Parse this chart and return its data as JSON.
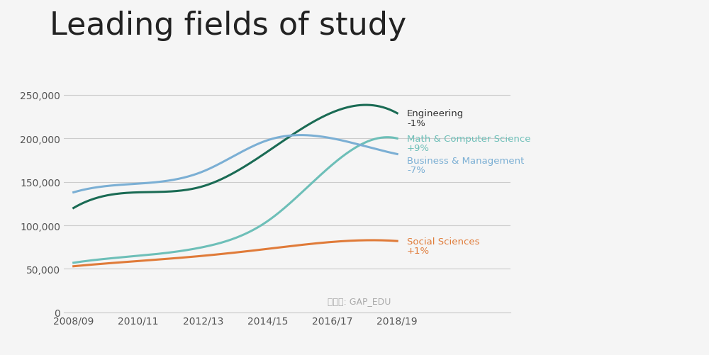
{
  "title": "Leading fields of study",
  "title_fontsize": 32,
  "background_color": "#f5f5f5",
  "x_labels": [
    "2008/09",
    "2010/11",
    "2012/13",
    "2014/15",
    "2016/17",
    "2018/19"
  ],
  "x_values": [
    0,
    2,
    4,
    6,
    8,
    10
  ],
  "series": [
    {
      "name": "Engineering",
      "change": "-1%",
      "color": "#1a6b54",
      "values": [
        120000,
        138000,
        145000,
        185000,
        230000,
        229000
      ]
    },
    {
      "name": "Math & Computer Science",
      "change": "+9%",
      "color": "#6dbfb8",
      "values": [
        57000,
        65000,
        75000,
        105000,
        170000,
        200000
      ]
    },
    {
      "name": "Business & Management",
      "change": "-7%",
      "color": "#7bafd4",
      "values": [
        138000,
        148000,
        162000,
        198000,
        200000,
        182000
      ]
    },
    {
      "name": "Social Sciences",
      "change": "+1%",
      "color": "#e07b39",
      "values": [
        53000,
        59000,
        65000,
        73000,
        81000,
        82000
      ]
    }
  ],
  "ylim": [
    0,
    270000
  ],
  "yticks": [
    0,
    50000,
    100000,
    150000,
    200000,
    250000
  ],
  "watermark": "微信号: GAP_EDU"
}
